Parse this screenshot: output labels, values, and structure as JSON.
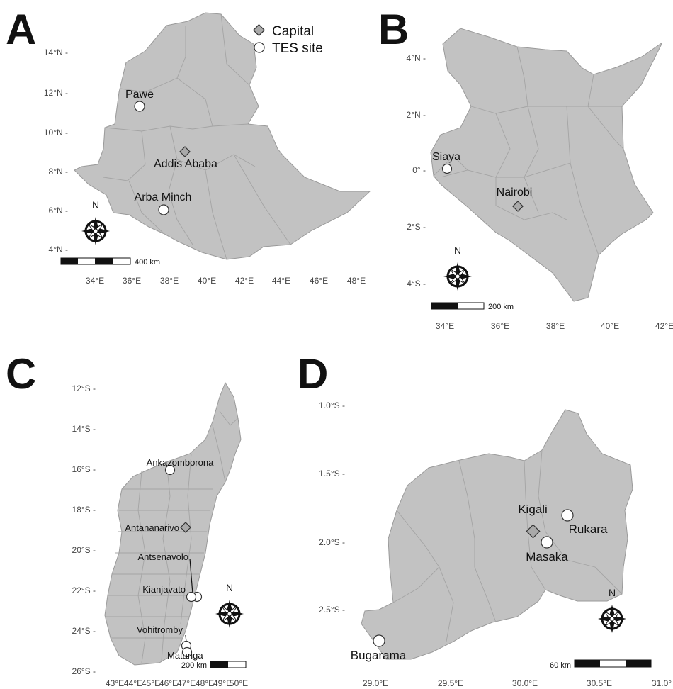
{
  "legend": {
    "capital_label": "Capital",
    "site_label": "TES site"
  },
  "panels": [
    {
      "letter": "A",
      "y_ticks": [
        "14°N -",
        "12°N -",
        "10°N -",
        "8°N -",
        "6°N -",
        "4°N -"
      ],
      "x_ticks": [
        "34°E",
        "36°E",
        "38°E",
        "40°E",
        "42°E",
        "44°E",
        "46°E",
        "48°E"
      ],
      "sites": [
        "Pawe",
        "Arba Minch"
      ],
      "capital": "Addis Ababa",
      "scale_label": "400 km",
      "north": "N"
    },
    {
      "letter": "B",
      "y_ticks": [
        "4°N -",
        "2°N -",
        "0° -",
        "2°S -",
        "4°S -"
      ],
      "x_ticks": [
        "34°E",
        "36°E",
        "38°E",
        "40°E",
        "42°E"
      ],
      "sites": [
        "Siaya"
      ],
      "capital": "Nairobi",
      "scale_label": "200 km",
      "north": "N"
    },
    {
      "letter": "C",
      "y_ticks": [
        "12°S -",
        "14°S -",
        "16°S -",
        "18°S -",
        "20°S -",
        "22°S -",
        "24°S -",
        "26°S -"
      ],
      "x_ticks": [
        "43°E",
        "44°E",
        "45°E",
        "46°E",
        "47°E",
        "48°E",
        "49°E",
        "50°E"
      ],
      "sites": [
        "Ankazomborona",
        "Antsenavolo",
        "Kianjavato",
        "Vohitromby",
        "Matanga"
      ],
      "capital": "Antananarivo",
      "scale_label": "200 km",
      "north": "N"
    },
    {
      "letter": "D",
      "y_ticks": [
        "1.0°S -",
        "1.5°S -",
        "2.0°S -",
        "2.5°S -"
      ],
      "x_ticks": [
        "29.0°E",
        "29.5°E",
        "30.0°E",
        "30.5°E",
        "31.0°"
      ],
      "sites": [
        "Rukara",
        "Masaka",
        "Bugarama"
      ],
      "capital": "Kigali",
      "scale_label": "60 km",
      "north": "N"
    }
  ]
}
